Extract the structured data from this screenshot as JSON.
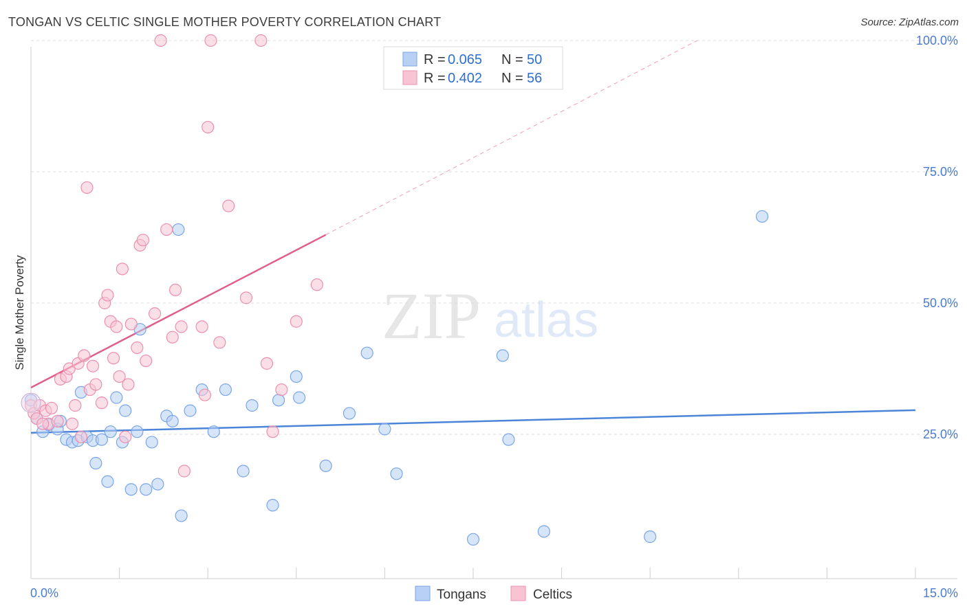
{
  "title": "TONGAN VS CELTIC SINGLE MOTHER POVERTY CORRELATION CHART",
  "source": "Source: ZipAtlas.com",
  "watermark": {
    "zip": "ZIP",
    "atlas": "atlas"
  },
  "legend": {
    "rows": [
      {
        "r_label": "R =",
        "r_value": "0.065",
        "n_label": "N =",
        "n_value": "50",
        "fill": "#b7d0f3",
        "stroke": "#7aa5e8"
      },
      {
        "r_label": "R =",
        "r_value": "0.402",
        "n_label": "N =",
        "n_value": "56",
        "fill": "#f8c4d4",
        "stroke": "#ec8fae"
      }
    ]
  },
  "bottom_legend": [
    {
      "label": "Tongans",
      "fill": "#b7d0f3",
      "stroke": "#7aa5e8"
    },
    {
      "label": "Celtics",
      "fill": "#f8c4d4",
      "stroke": "#ec8fae"
    }
  ],
  "chart_data": {
    "type": "scatter",
    "title": "TONGAN VS CELTIC SINGLE MOTHER POVERTY CORRELATION CHART",
    "xlabel": "",
    "ylabel": "Single Mother Poverty",
    "xlim": [
      0,
      15
    ],
    "ylim": [
      0,
      100
    ],
    "x_tick_labels": [
      "0.0%",
      "15.0%"
    ],
    "y_tick_values": [
      25,
      50,
      75,
      100
    ],
    "y_tick_labels": [
      "25.0%",
      "50.0%",
      "75.0%",
      "100.0%"
    ],
    "grid": true,
    "legend_position": "top-center",
    "series": [
      {
        "name": "Tongans",
        "color": "#4a85d8",
        "fill": "#b7d0f3",
        "r": 0.065,
        "n": 50,
        "trend": {
          "x0": 0,
          "y0": 25.3,
          "x1": 15,
          "y1": 29.6
        },
        "points": [
          [
            0.0,
            31.5
          ],
          [
            0.1,
            28.0
          ],
          [
            0.2,
            25.5
          ],
          [
            0.3,
            26.8
          ],
          [
            0.45,
            26.0
          ],
          [
            0.6,
            24.0
          ],
          [
            0.7,
            23.5
          ],
          [
            0.8,
            23.8
          ],
          [
            0.85,
            33.0
          ],
          [
            0.95,
            24.5
          ],
          [
            1.05,
            23.8
          ],
          [
            1.1,
            19.5
          ],
          [
            1.2,
            24.0
          ],
          [
            1.3,
            16.0
          ],
          [
            1.35,
            25.5
          ],
          [
            1.45,
            32.0
          ],
          [
            1.55,
            23.5
          ],
          [
            1.6,
            29.5
          ],
          [
            1.7,
            14.5
          ],
          [
            1.8,
            25.5
          ],
          [
            1.85,
            45.0
          ],
          [
            1.95,
            14.5
          ],
          [
            2.05,
            23.5
          ],
          [
            2.15,
            15.5
          ],
          [
            2.3,
            28.5
          ],
          [
            2.4,
            27.5
          ],
          [
            2.5,
            64.0
          ],
          [
            2.55,
            9.5
          ],
          [
            2.7,
            29.5
          ],
          [
            2.9,
            33.5
          ],
          [
            3.1,
            25.5
          ],
          [
            3.3,
            33.5
          ],
          [
            3.6,
            18.0
          ],
          [
            3.75,
            30.5
          ],
          [
            4.1,
            11.5
          ],
          [
            4.2,
            31.5
          ],
          [
            4.5,
            36.0
          ],
          [
            4.55,
            32.0
          ],
          [
            5.0,
            19.0
          ],
          [
            5.4,
            29.0
          ],
          [
            5.7,
            40.5
          ],
          [
            6.0,
            26.0
          ],
          [
            6.2,
            17.5
          ],
          [
            7.5,
            5.0
          ],
          [
            8.0,
            40.0
          ],
          [
            8.1,
            24.0
          ],
          [
            8.7,
            6.5
          ],
          [
            10.5,
            5.5
          ],
          [
            12.4,
            66.5
          ],
          [
            0.5,
            27.5
          ]
        ]
      },
      {
        "name": "Celtics",
        "color": "#e05f8a",
        "fill": "#f8c4d4",
        "r": 0.402,
        "n": 56,
        "trend": {
          "x0": 0,
          "y0": 33.9,
          "x1": 5.0,
          "y1": 63.0
        },
        "trend_ext": {
          "x0": 5.0,
          "y0": 63.0,
          "x1": 11.3,
          "y1": 100
        },
        "points": [
          [
            0.0,
            30.5
          ],
          [
            0.05,
            29.0
          ],
          [
            0.1,
            28.0
          ],
          [
            0.15,
            30.5
          ],
          [
            0.25,
            29.5
          ],
          [
            0.3,
            27.0
          ],
          [
            0.35,
            30.0
          ],
          [
            0.45,
            27.5
          ],
          [
            0.5,
            35.5
          ],
          [
            0.6,
            36.0
          ],
          [
            0.65,
            37.5
          ],
          [
            0.7,
            27.0
          ],
          [
            0.75,
            30.5
          ],
          [
            0.8,
            38.5
          ],
          [
            0.85,
            24.5
          ],
          [
            0.9,
            40.0
          ],
          [
            0.95,
            72.0
          ],
          [
            1.0,
            33.5
          ],
          [
            1.05,
            38.0
          ],
          [
            1.1,
            34.5
          ],
          [
            1.2,
            31.0
          ],
          [
            1.25,
            50.0
          ],
          [
            1.3,
            51.5
          ],
          [
            1.35,
            46.5
          ],
          [
            1.4,
            39.5
          ],
          [
            1.45,
            45.5
          ],
          [
            1.5,
            36.0
          ],
          [
            1.55,
            56.5
          ],
          [
            1.6,
            24.5
          ],
          [
            1.65,
            34.5
          ],
          [
            1.7,
            46.0
          ],
          [
            1.8,
            41.5
          ],
          [
            1.85,
            61.0
          ],
          [
            1.9,
            62.0
          ],
          [
            1.95,
            39.0
          ],
          [
            2.1,
            48.0
          ],
          [
            2.2,
            100.0
          ],
          [
            2.3,
            64.0
          ],
          [
            2.4,
            43.5
          ],
          [
            2.45,
            52.5
          ],
          [
            2.55,
            45.5
          ],
          [
            2.6,
            18.0
          ],
          [
            2.9,
            45.5
          ],
          [
            2.95,
            32.5
          ],
          [
            3.0,
            83.5
          ],
          [
            3.05,
            100.0
          ],
          [
            3.2,
            42.5
          ],
          [
            3.35,
            68.5
          ],
          [
            3.65,
            51.0
          ],
          [
            3.9,
            100.0
          ],
          [
            4.0,
            38.5
          ],
          [
            4.1,
            25.5
          ],
          [
            4.25,
            33.5
          ],
          [
            4.5,
            46.5
          ],
          [
            4.85,
            53.5
          ],
          [
            0.2,
            27.0
          ]
        ]
      }
    ]
  }
}
